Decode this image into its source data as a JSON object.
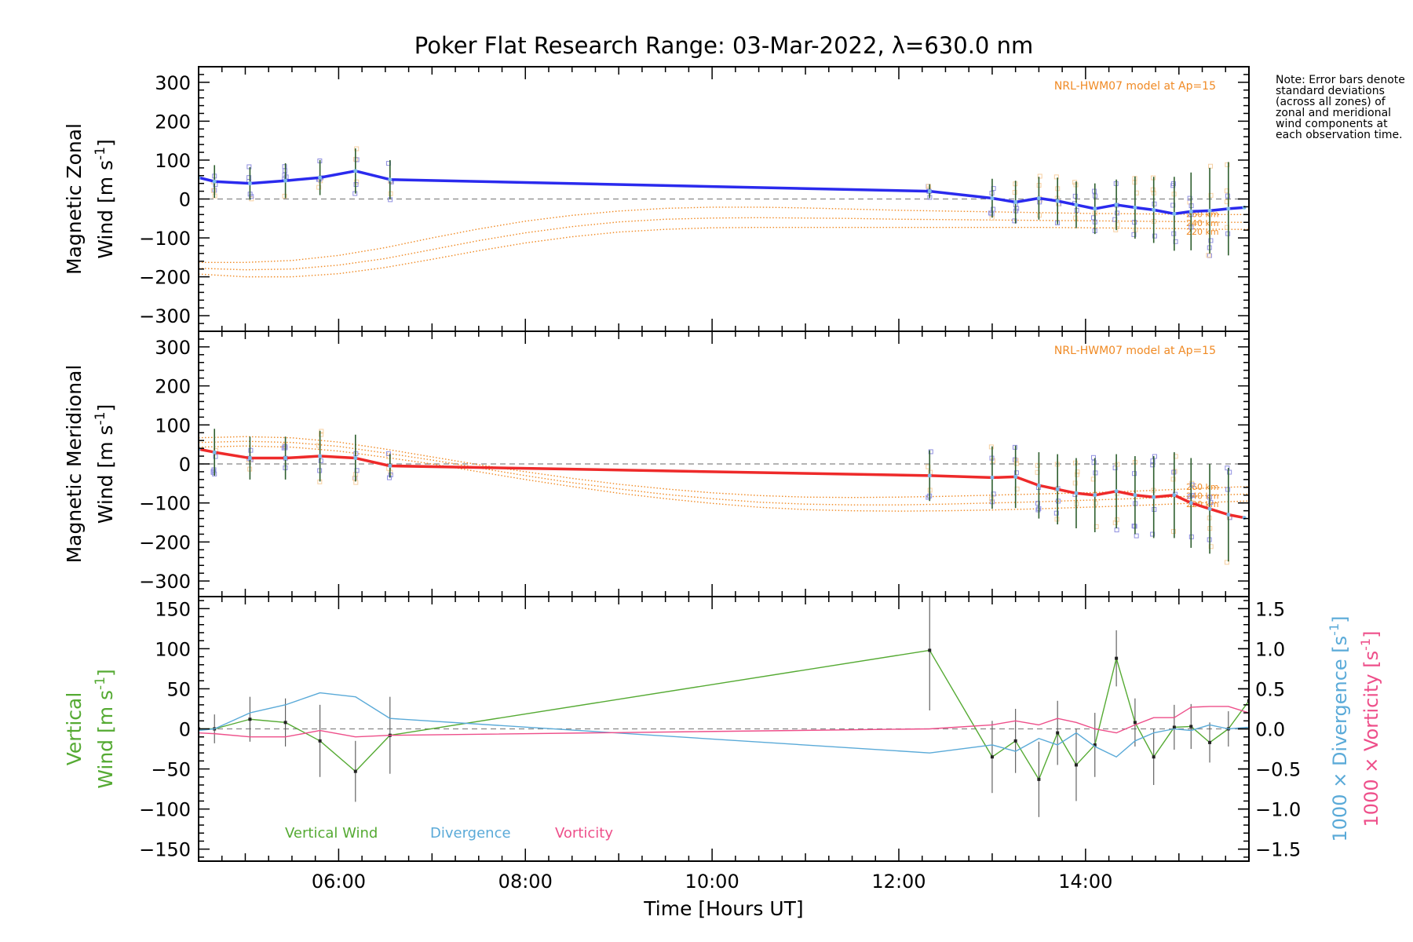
{
  "title": "Poker Flat Research Range: 03-Mar-2022, λ=630.0 nm",
  "note": "Note: Error bars denote standard deviations (across all zones) of zonal and meridional wind components at each observation time.",
  "xlabel": "Time [Hours UT]",
  "colors": {
    "zonal": "#2a2aee",
    "meridional": "#ee2a2a",
    "model": "#f08a24",
    "vertical": "#55aa33",
    "divergence": "#5aaad8",
    "vorticity": "#ee4f8a",
    "scatter": "#8f8fe0",
    "scatter_warm": "#f7cfa0",
    "axis": "#000000",
    "zero": "#888888"
  },
  "chart_data": [
    {
      "type": "line",
      "title": "Magnetic Zonal Wind",
      "ylabel_line1": "Magnetic Zonal",
      "ylabel_line2": "Wind [m s",
      "ylabel_sup": "-1",
      "ylabel_close": "]",
      "ylim": [
        -340,
        340
      ],
      "yticks": [
        300,
        200,
        100,
        0,
        -100,
        -200,
        -300
      ],
      "model_label": "NRL-HWM07 model at Ap=15",
      "model_alt_labels": [
        "260 km",
        "240 km",
        "220 km"
      ],
      "series": [
        {
          "name": "Zonal wind",
          "x": [
            4.5,
            4.67,
            5.05,
            5.43,
            5.8,
            6.18,
            6.55,
            12.33,
            13.0,
            13.25,
            13.5,
            13.7,
            13.9,
            14.1,
            14.33,
            14.53,
            14.73,
            14.95,
            15.13,
            15.33,
            15.53,
            15.7
          ],
          "y": [
            55,
            45,
            40,
            47,
            55,
            72,
            50,
            20,
            2,
            -8,
            2,
            -5,
            -15,
            -25,
            -15,
            -22,
            -28,
            -38,
            -32,
            -30,
            -25,
            -22
          ],
          "err": [
            0,
            42,
            42,
            45,
            45,
            58,
            50,
            18,
            50,
            55,
            55,
            60,
            60,
            65,
            65,
            80,
            85,
            95,
            100,
            110,
            120,
            0
          ]
        }
      ],
      "model": [
        {
          "alt": "260 km",
          "x": [
            4.5,
            5.0,
            5.5,
            6.0,
            6.5,
            7.0,
            7.5,
            8.0,
            8.5,
            9.0,
            9.5,
            10.0,
            10.5,
            11.0,
            11.5,
            12.0,
            12.5,
            13.0,
            13.5,
            14.0,
            14.5,
            15.0,
            15.5,
            15.75
          ],
          "y": [
            -163,
            -163,
            -158,
            -145,
            -125,
            -100,
            -77,
            -57,
            -42,
            -31,
            -24,
            -21,
            -21,
            -23,
            -26,
            -29,
            -31,
            -33,
            -35,
            -37,
            -38,
            -39,
            -40,
            -40
          ]
        },
        {
          "alt": "240 km",
          "x": [
            4.5,
            5.0,
            5.5,
            6.0,
            6.5,
            7.0,
            7.5,
            8.0,
            8.5,
            9.0,
            9.5,
            10.0,
            10.5,
            11.0,
            11.5,
            12.0,
            12.5,
            13.0,
            13.5,
            14.0,
            14.5,
            15.0,
            15.5,
            15.75
          ],
          "y": [
            -178,
            -182,
            -180,
            -170,
            -153,
            -130,
            -107,
            -87,
            -71,
            -59,
            -52,
            -49,
            -48,
            -49,
            -50,
            -52,
            -53,
            -54,
            -55,
            -56,
            -57,
            -58,
            -60,
            -60
          ]
        },
        {
          "alt": "220 km",
          "x": [
            4.5,
            5.0,
            5.5,
            6.0,
            6.5,
            7.0,
            7.5,
            8.0,
            8.5,
            9.0,
            9.5,
            10.0,
            10.5,
            11.0,
            11.5,
            12.0,
            12.5,
            13.0,
            13.5,
            14.0,
            14.5,
            15.0,
            15.5,
            15.75
          ],
          "y": [
            -193,
            -200,
            -200,
            -192,
            -176,
            -155,
            -133,
            -113,
            -97,
            -85,
            -78,
            -74,
            -73,
            -73,
            -73,
            -73,
            -73,
            -73,
            -73,
            -74,
            -75,
            -76,
            -78,
            -78
          ]
        }
      ]
    },
    {
      "type": "line",
      "title": "Magnetic Meridional Wind",
      "ylabel_line1": "Magnetic Meridional",
      "ylabel_line2": "Wind [m s",
      "ylabel_sup": "-1",
      "ylabel_close": "]",
      "ylim": [
        -340,
        340
      ],
      "yticks": [
        300,
        200,
        100,
        0,
        -100,
        -200,
        -300
      ],
      "model_label": "NRL-HWM07 model at Ap=15",
      "model_alt_labels": [
        "260 km",
        "240 km",
        "220 km"
      ],
      "series": [
        {
          "name": "Meridional wind",
          "x": [
            4.5,
            4.67,
            5.05,
            5.43,
            5.8,
            6.18,
            6.55,
            12.33,
            13.0,
            13.25,
            13.5,
            13.7,
            13.9,
            14.1,
            14.33,
            14.53,
            14.73,
            14.95,
            15.13,
            15.33,
            15.53,
            15.7
          ],
          "y": [
            38,
            30,
            15,
            15,
            20,
            15,
            -5,
            -30,
            -35,
            -33,
            -55,
            -65,
            -75,
            -80,
            -70,
            -80,
            -85,
            -80,
            -100,
            -115,
            -130,
            -138
          ],
          "err": [
            0,
            60,
            55,
            55,
            65,
            60,
            30,
            65,
            80,
            80,
            85,
            90,
            90,
            95,
            95,
            100,
            105,
            110,
            115,
            115,
            120,
            0
          ]
        }
      ],
      "model": [
        {
          "alt": "260 km",
          "x": [
            4.5,
            5.0,
            5.5,
            6.0,
            6.5,
            7.0,
            7.5,
            8.0,
            8.5,
            9.0,
            9.5,
            10.0,
            10.5,
            11.0,
            11.5,
            12.0,
            12.5,
            13.0,
            13.5,
            14.0,
            14.5,
            15.0,
            15.5,
            15.75
          ],
          "y": [
            67,
            70,
            67,
            56,
            38,
            18,
            -2,
            -20,
            -37,
            -52,
            -64,
            -74,
            -81,
            -85,
            -86,
            -85,
            -83,
            -80,
            -77,
            -74,
            -70,
            -65,
            -60,
            -58
          ]
        },
        {
          "alt": "240 km",
          "x": [
            4.5,
            5.0,
            5.5,
            6.0,
            6.5,
            7.0,
            7.5,
            8.0,
            8.5,
            9.0,
            9.5,
            10.0,
            10.5,
            11.0,
            11.5,
            12.0,
            12.5,
            13.0,
            13.5,
            14.0,
            14.5,
            15.0,
            15.5,
            15.75
          ],
          "y": [
            55,
            58,
            55,
            45,
            28,
            10,
            -10,
            -30,
            -48,
            -64,
            -78,
            -89,
            -98,
            -103,
            -105,
            -105,
            -103,
            -100,
            -97,
            -93,
            -89,
            -84,
            -79,
            -77
          ]
        },
        {
          "alt": "220 km",
          "x": [
            4.5,
            5.0,
            5.5,
            6.0,
            6.5,
            7.0,
            7.5,
            8.0,
            8.5,
            9.0,
            9.5,
            10.0,
            10.5,
            11.0,
            11.5,
            12.0,
            12.5,
            13.0,
            13.5,
            14.0,
            14.5,
            15.0,
            15.5,
            15.75
          ],
          "y": [
            43,
            46,
            43,
            33,
            17,
            0,
            -20,
            -40,
            -58,
            -75,
            -89,
            -101,
            -111,
            -117,
            -120,
            -121,
            -120,
            -118,
            -115,
            -111,
            -107,
            -102,
            -97,
            -95
          ]
        }
      ]
    },
    {
      "type": "line",
      "title": "Vertical Wind, Divergence, Vorticity",
      "ylabel_line1": "Vertical",
      "ylabel_line2": "Wind [m s",
      "ylabel_sup": "-1",
      "ylabel_close": "]",
      "ylim": [
        -165,
        165
      ],
      "yticks": [
        150,
        100,
        50,
        0,
        -50,
        -100,
        -150
      ],
      "y2lim": [
        -1.65,
        1.65
      ],
      "y2ticks": [
        1.5,
        1.0,
        0.5,
        0.0,
        -0.5,
        -1.0,
        -1.5
      ],
      "y2ticklabels": [
        "1.5",
        "1.0",
        "0.5",
        "0.0",
        "-0.5",
        "-1.0",
        "-1.5"
      ],
      "y2label_div": "1000 × Divergence [s",
      "y2label_vor": "1000 × Vorticity [s",
      "y2label_sup": "-1",
      "y2label_close": "]",
      "legend": [
        "Vertical Wind",
        "Divergence",
        "Vorticity"
      ],
      "series": [
        {
          "name": "Vertical Wind",
          "axis": "left",
          "x": [
            4.5,
            4.67,
            5.05,
            5.43,
            5.8,
            6.18,
            6.55,
            12.33,
            13.0,
            13.25,
            13.5,
            13.7,
            13.9,
            14.1,
            14.33,
            14.53,
            14.73,
            14.95,
            15.13,
            15.33,
            15.53,
            15.75
          ],
          "y": [
            0,
            0,
            12,
            8,
            -15,
            -53,
            -8,
            98,
            -35,
            -15,
            -63,
            -5,
            -45,
            -20,
            88,
            8,
            -35,
            2,
            3,
            -17,
            0,
            35
          ],
          "err": [
            0,
            18,
            28,
            30,
            45,
            38,
            48,
            75,
            45,
            40,
            47,
            40,
            45,
            40,
            35,
            30,
            35,
            28,
            28,
            25,
            22,
            0
          ]
        },
        {
          "name": "Divergence",
          "axis": "right",
          "x": [
            4.5,
            4.67,
            5.05,
            5.43,
            5.8,
            6.18,
            6.55,
            12.33,
            13.0,
            13.25,
            13.5,
            13.7,
            13.9,
            14.1,
            14.33,
            14.53,
            14.73,
            14.95,
            15.13,
            15.33,
            15.53,
            15.75
          ],
          "y": [
            -0.02,
            0.0,
            0.2,
            0.3,
            0.45,
            0.4,
            0.13,
            -0.3,
            -0.2,
            -0.28,
            -0.12,
            -0.2,
            -0.05,
            -0.22,
            -0.35,
            -0.15,
            -0.05,
            0.0,
            -0.02,
            0.05,
            0.0,
            0.02
          ]
        },
        {
          "name": "Vorticity",
          "axis": "right",
          "x": [
            4.5,
            4.67,
            5.05,
            5.43,
            5.8,
            6.18,
            6.55,
            12.33,
            13.0,
            13.25,
            13.5,
            13.7,
            13.9,
            14.1,
            14.33,
            14.53,
            14.73,
            14.95,
            15.13,
            15.33,
            15.53,
            15.75
          ],
          "y": [
            -0.05,
            -0.06,
            -0.1,
            -0.1,
            -0.02,
            -0.1,
            -0.08,
            0.0,
            0.05,
            0.1,
            0.05,
            0.13,
            0.08,
            0.0,
            -0.05,
            0.05,
            0.14,
            0.14,
            0.27,
            0.28,
            0.28,
            0.2
          ]
        }
      ]
    }
  ],
  "x_axis": {
    "xlim": [
      4.5,
      15.75
    ],
    "major_ticks": [
      6,
      8,
      10,
      12,
      14
    ],
    "major_labels": [
      "06:00",
      "08:00",
      "10:00",
      "12:00",
      "14:00"
    ]
  }
}
